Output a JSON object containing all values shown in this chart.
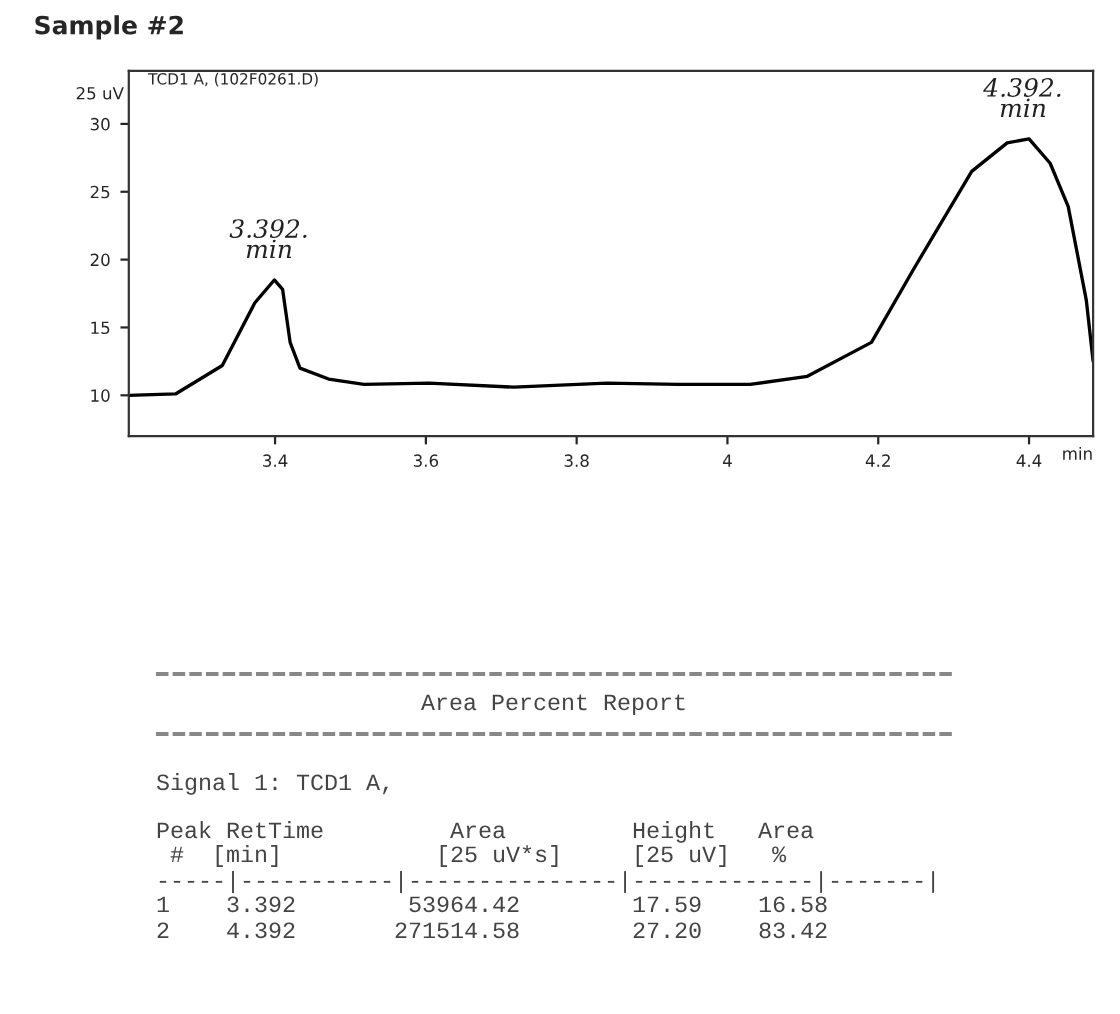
{
  "chart_data": {
    "type": "line",
    "title": "Sample #2",
    "xlabel": "min",
    "ylabel": "25 uV",
    "x": [
      3.206,
      3.268,
      3.33,
      3.373,
      3.399,
      3.41,
      3.42,
      3.433,
      3.471,
      3.518,
      3.604,
      3.717,
      3.84,
      3.935,
      4.03,
      4.106,
      4.191,
      4.248,
      4.324,
      4.371,
      4.4,
      4.428,
      4.452,
      4.476,
      4.485
    ],
    "series": [
      {
        "color": "#000000",
        "values": [
          10.0,
          10.1,
          12.2,
          16.8,
          18.5,
          17.8,
          13.9,
          12.0,
          11.2,
          10.8,
          10.9,
          10.6,
          10.9,
          10.8,
          10.8,
          11.4,
          13.9,
          19.4,
          26.5,
          28.6,
          28.9,
          27.1,
          23.9,
          17.0,
          12.5
        ]
      }
    ],
    "xlim": [
      3.206,
      4.485
    ],
    "ylim": [
      7,
      33.9
    ],
    "xticks": [
      3.4,
      3.6,
      3.8,
      4,
      4.2,
      4.4
    ],
    "yticks": [
      10,
      15,
      20,
      25,
      30
    ],
    "grid": false,
    "legend": false,
    "marker": "none",
    "line_style": "solid",
    "annotations": [
      "TCD1 A, (102F0261.D)",
      {
        "text": "3.392.\nmin",
        "x": 3.392,
        "y": 18.5
      },
      {
        "text": "4.392.\nmin",
        "x": 4.392,
        "y": 28.9
      },
      "Area Percent Report",
      "Signal 1: TCD1 A,",
      "Peak RetTime         Area         Height   Area",
      " #  [min]           [25 uV*s]     [25 uV]   %",
      "-----|-----------|---------------|-------------|-------|",
      "1    3.392        53964.42        17.59    16.58",
      "2    4.392       271514.58        27.20    83.42"
    ]
  }
}
